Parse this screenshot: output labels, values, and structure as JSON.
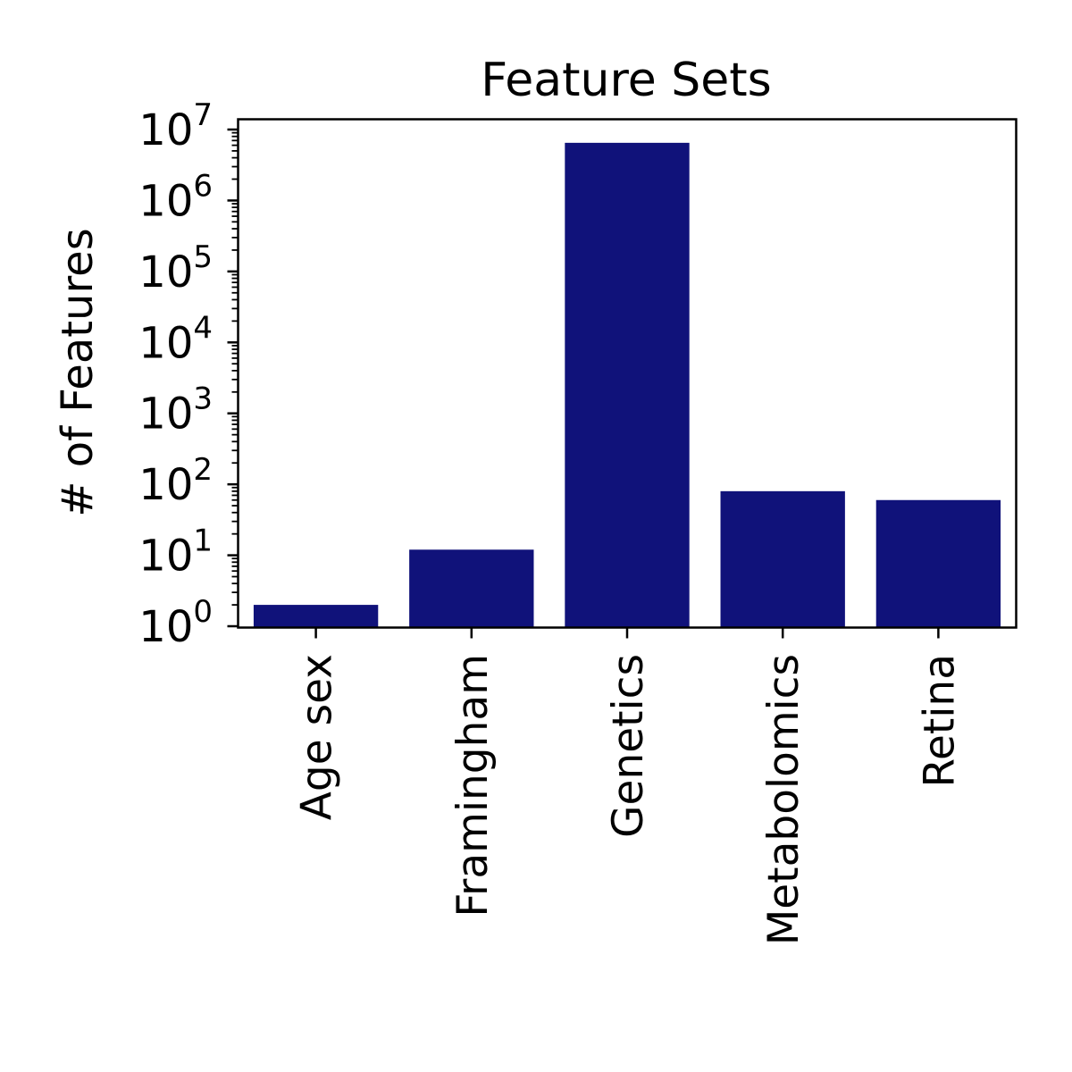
{
  "chart_data": {
    "type": "bar",
    "title": "Feature Sets",
    "xlabel": "",
    "ylabel": "# of Features",
    "yscale": "log",
    "ylim": [
      1,
      10000000
    ],
    "y_tick_labels": [
      {
        "base": "10",
        "exp": "0"
      },
      {
        "base": "10",
        "exp": "1"
      },
      {
        "base": "10",
        "exp": "2"
      },
      {
        "base": "10",
        "exp": "3"
      },
      {
        "base": "10",
        "exp": "4"
      },
      {
        "base": "10",
        "exp": "5"
      },
      {
        "base": "10",
        "exp": "6"
      },
      {
        "base": "10",
        "exp": "7"
      }
    ],
    "categories": [
      "Age sex",
      "Framingham",
      "Genetics",
      "Metabolomics",
      "Retina"
    ],
    "values": [
      2,
      12,
      6500000,
      80,
      60
    ],
    "bar_color": "#10127a",
    "grid": false,
    "legend": "none"
  }
}
